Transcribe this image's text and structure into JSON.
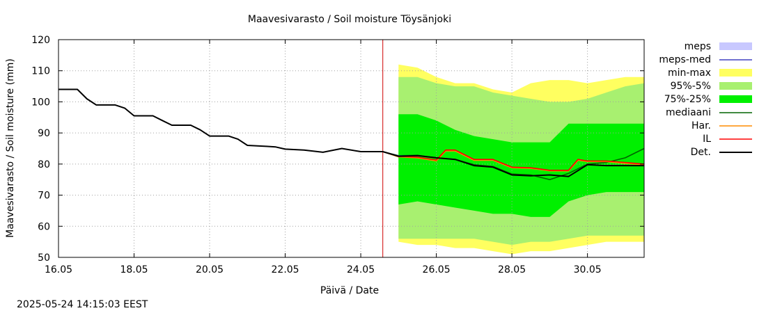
{
  "chart_data": {
    "type": "area",
    "title": "Maavesivarasto / Soil moisture   Töysänjoki",
    "xlabel": "Päivä / Date",
    "ylabel": "Maavesivarasto / Soil moisture (mm)",
    "ylim": [
      50,
      120
    ],
    "xlim": [
      "16.05",
      "31.05 12:00"
    ],
    "x_ticks": [
      "16.05",
      "18.05",
      "20.05",
      "22.05",
      "24.05",
      "26.05",
      "28.05",
      "30.05"
    ],
    "y_ticks": [
      50,
      60,
      70,
      80,
      90,
      100,
      110,
      120
    ],
    "grid": true,
    "legend_position": "right",
    "forecast_start": "24.05 14:00",
    "legend": [
      {
        "label": "meps",
        "color": "#c8c8ff",
        "kind": "box"
      },
      {
        "label": "meps-med",
        "color": "#4040c0",
        "kind": "line"
      },
      {
        "label": "min-max",
        "color": "#ffff60",
        "kind": "box"
      },
      {
        "label": "95%-5%",
        "color": "#a8f070",
        "kind": "box"
      },
      {
        "label": "75%-25%",
        "color": "#00f000",
        "kind": "box"
      },
      {
        "label": "mediaani",
        "color": "#006400",
        "kind": "line"
      },
      {
        "label": "Har.",
        "color": "#ff8c00",
        "kind": "line"
      },
      {
        "label": "IL",
        "color": "#ff0000",
        "kind": "line"
      },
      {
        "label": "Det.",
        "color": "#000000",
        "kind": "line"
      }
    ],
    "bands": {
      "x": [
        "25.05 00:00",
        "25.05 12:00",
        "26.05 00:00",
        "26.05 12:00",
        "27.05 00:00",
        "27.05 12:00",
        "28.05 00:00",
        "28.05 12:00",
        "29.05 00:00",
        "29.05 12:00",
        "30.05 00:00",
        "30.05 12:00",
        "31.05 00:00",
        "31.05 12:00"
      ],
      "min_max": {
        "low": [
          55,
          54,
          54,
          53,
          53,
          52,
          51,
          52,
          52,
          53,
          54,
          55,
          55,
          55
        ],
        "high": [
          112,
          111,
          108,
          106,
          106,
          104,
          103,
          106,
          107,
          107,
          106,
          107,
          108,
          108
        ]
      },
      "p95_5": {
        "low": [
          56,
          56,
          56,
          56,
          56,
          55,
          54,
          55,
          55,
          56,
          57,
          57,
          57,
          57
        ],
        "high": [
          108,
          108,
          106,
          105,
          105,
          103,
          102,
          101,
          100,
          100,
          101,
          103,
          105,
          106
        ]
      },
      "p75_25": {
        "low": [
          67,
          68,
          67,
          66,
          65,
          64,
          64,
          63,
          63,
          68,
          70,
          71,
          71,
          71
        ],
        "high": [
          96,
          96,
          94,
          91,
          89,
          88,
          87,
          87,
          87,
          93,
          93,
          93,
          93,
          93
        ]
      }
    },
    "series": [
      {
        "name": "Det.",
        "x": [
          "16.05 00:00",
          "16.05 12:00",
          "16.05 18:00",
          "17.05 00:00",
          "17.05 12:00",
          "17.05 18:00",
          "18.05 00:00",
          "18.05 12:00",
          "18.05 18:00",
          "19.05 00:00",
          "19.05 12:00",
          "19.05 18:00",
          "20.05 00:00",
          "20.05 12:00",
          "20.05 18:00",
          "21.05 00:00",
          "21.05 12:00",
          "21.05 18:00",
          "22.05 00:00",
          "22.05 12:00",
          "23.05 00:00",
          "23.05 12:00",
          "24.05 00:00",
          "24.05 14:00",
          "25.05 00:00",
          "25.05 12:00",
          "26.05 00:00",
          "26.05 12:00",
          "27.05 00:00",
          "27.05 12:00",
          "28.05 00:00",
          "28.05 12:00",
          "29.05 00:00",
          "29.05 12:00",
          "30.05 00:00",
          "30.05 12:00",
          "31.05 00:00",
          "31.05 12:00"
        ],
        "values": [
          104,
          104,
          101,
          99,
          99,
          98,
          95.5,
          95.5,
          94,
          92.5,
          92.5,
          91,
          89,
          89,
          88,
          86,
          85.7,
          85.5,
          84.8,
          84.5,
          83.8,
          85,
          84,
          84,
          82.5,
          82.7,
          82,
          81.5,
          79.5,
          79,
          76.5,
          76.2,
          76.5,
          76,
          79.8,
          79.5,
          79.5,
          79.5
        ]
      },
      {
        "name": "IL",
        "x": [
          "24.05 14:00",
          "25.05 00:00",
          "25.05 12:00",
          "26.05 00:00",
          "26.05 06:00",
          "26.05 12:00",
          "27.05 00:00",
          "27.05 12:00",
          "28.05 00:00",
          "28.05 12:00",
          "29.05 00:00",
          "29.05 12:00",
          "29.05 18:00",
          "30.05 00:00",
          "30.05 12:00",
          "31.05 00:00",
          "31.05 12:00"
        ],
        "values": [
          84,
          82.5,
          82.2,
          81.3,
          84.5,
          84.5,
          81.5,
          81.5,
          79,
          78.8,
          78,
          78,
          81.5,
          81,
          81,
          80.5,
          80
        ]
      },
      {
        "name": "Har.",
        "x": [
          "24.05 14:00",
          "25.05 00:00",
          "25.05 12:00",
          "26.05 00:00",
          "26.05 06:00",
          "26.05 12:00",
          "27.05 00:00",
          "27.05 12:00",
          "28.05 00:00",
          "28.05 12:00",
          "29.05 00:00",
          "29.05 12:00",
          "29.05 18:00",
          "30.05 00:00",
          "30.05 12:00",
          "31.05 00:00",
          "31.05 12:00"
        ],
        "values": [
          84,
          82.3,
          82,
          81,
          84.2,
          84.2,
          81.2,
          81.2,
          78.8,
          78.6,
          77.8,
          77.8,
          81.2,
          80.8,
          80.8,
          80.2,
          79.8
        ]
      },
      {
        "name": "mediaani",
        "x": [
          "24.05 14:00",
          "25.05 00:00",
          "25.05 12:00",
          "26.05 00:00",
          "26.05 12:00",
          "27.05 00:00",
          "27.05 12:00",
          "28.05 00:00",
          "28.05 12:00",
          "29.05 00:00",
          "29.05 12:00",
          "30.05 00:00",
          "30.05 12:00",
          "31.05 00:00",
          "31.05 12:00"
        ],
        "values": [
          84,
          82.7,
          82.8,
          82,
          81.5,
          79.8,
          79.2,
          76.8,
          76.5,
          75,
          77,
          80,
          80.5,
          82,
          85
        ]
      },
      {
        "name": "meps-med",
        "x": [
          "24.05 14:00",
          "25.05 00:00",
          "25.05 12:00"
        ],
        "values": [
          84,
          82.6,
          82.6
        ]
      }
    ]
  },
  "footer": {
    "timestamp": "2025-05-24 14:15:03 EEST"
  }
}
